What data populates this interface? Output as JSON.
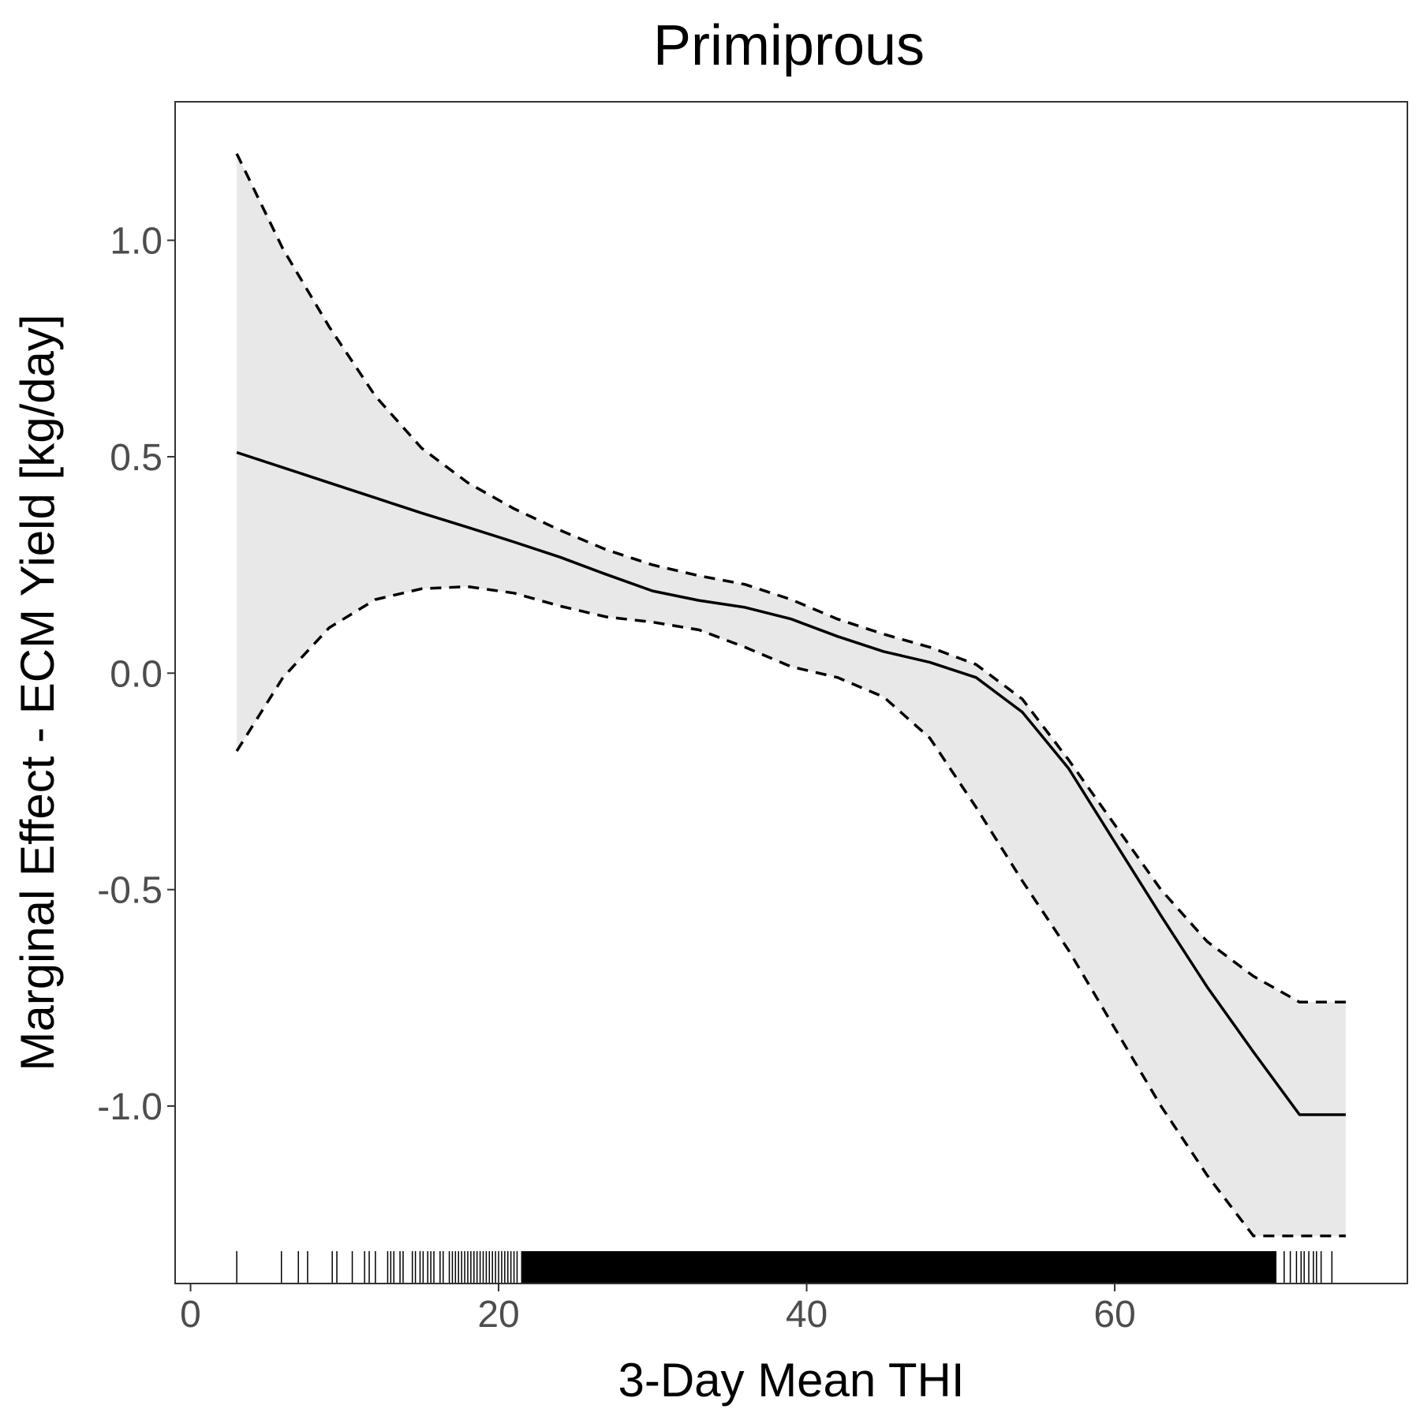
{
  "chart_data": {
    "type": "line",
    "title": "Primiprous",
    "xlabel": "3-Day Mean THI",
    "ylabel": "Marginal Effect - ECM Yield [kg/day]",
    "xlim": [
      -1,
      79
    ],
    "ylim": [
      -1.41,
      1.32
    ],
    "x_ticks": [
      {
        "value": 0,
        "label": "0"
      },
      {
        "value": 20,
        "label": "20"
      },
      {
        "value": 40,
        "label": "40"
      },
      {
        "value": 60,
        "label": "60"
      }
    ],
    "y_ticks": [
      {
        "value": 1.0,
        "label": "1.0"
      },
      {
        "value": 0.5,
        "label": "0.5"
      },
      {
        "value": 0.0,
        "label": "0.0"
      },
      {
        "value": -0.5,
        "label": "-0.5"
      },
      {
        "value": -1.0,
        "label": "-1.0"
      }
    ],
    "grid": false,
    "x": [
      3,
      6,
      9,
      12,
      15,
      18,
      21,
      24,
      27,
      30,
      33,
      36,
      39,
      42,
      45,
      48,
      51,
      54,
      57,
      60,
      63,
      66,
      69,
      72,
      75
    ],
    "series": [
      {
        "role": "estimate",
        "line_style": "solid",
        "values": [
          0.51,
          0.475,
          0.44,
          0.405,
          0.37,
          0.337,
          0.303,
          0.268,
          0.228,
          0.19,
          0.168,
          0.152,
          0.125,
          0.085,
          0.05,
          0.025,
          -0.01,
          -0.09,
          -0.22,
          -0.39,
          -0.56,
          -0.725,
          -0.875,
          -1.02,
          -1.02
        ]
      },
      {
        "role": "upper",
        "line_style": "dashed",
        "values": [
          1.2,
          0.98,
          0.8,
          0.64,
          0.52,
          0.44,
          0.38,
          0.33,
          0.285,
          0.25,
          0.225,
          0.205,
          0.17,
          0.125,
          0.09,
          0.06,
          0.02,
          -0.06,
          -0.2,
          -0.35,
          -0.5,
          -0.62,
          -0.7,
          -0.76,
          -0.76
        ]
      },
      {
        "role": "lower",
        "line_style": "dashed",
        "values": [
          -0.18,
          -0.01,
          0.105,
          0.17,
          0.195,
          0.2,
          0.185,
          0.155,
          0.13,
          0.118,
          0.1,
          0.06,
          0.015,
          -0.01,
          -0.055,
          -0.15,
          -0.31,
          -0.48,
          -0.64,
          -0.82,
          -1.0,
          -1.16,
          -1.3,
          -1.3,
          -1.3
        ]
      }
    ],
    "rug": {
      "x": [
        3,
        5.9,
        7,
        7.6,
        9.2,
        9.5,
        10.5,
        11.3,
        11.6,
        12,
        12.8,
        13,
        13.2,
        13.6,
        13.8,
        14.4,
        14.6,
        14.9,
        15.1,
        15.4,
        15.6,
        15.8,
        16.2,
        16.4,
        16.8,
        17,
        17.2,
        17.4,
        17.6,
        17.8,
        18,
        18.2,
        18.4,
        18.6,
        18.8,
        19,
        19.2,
        19.4,
        19.6,
        19.8,
        20,
        20.2,
        20.4,
        20.6,
        20.8,
        21,
        21.2,
        21.5,
        21.8,
        22.2,
        22.6,
        23,
        71,
        71.4,
        71.8,
        72.1,
        72.3,
        72.6,
        72.9,
        73.1,
        73.4,
        74.1
      ],
      "dense_from": 21.5,
      "dense_to": 70.5
    }
  }
}
